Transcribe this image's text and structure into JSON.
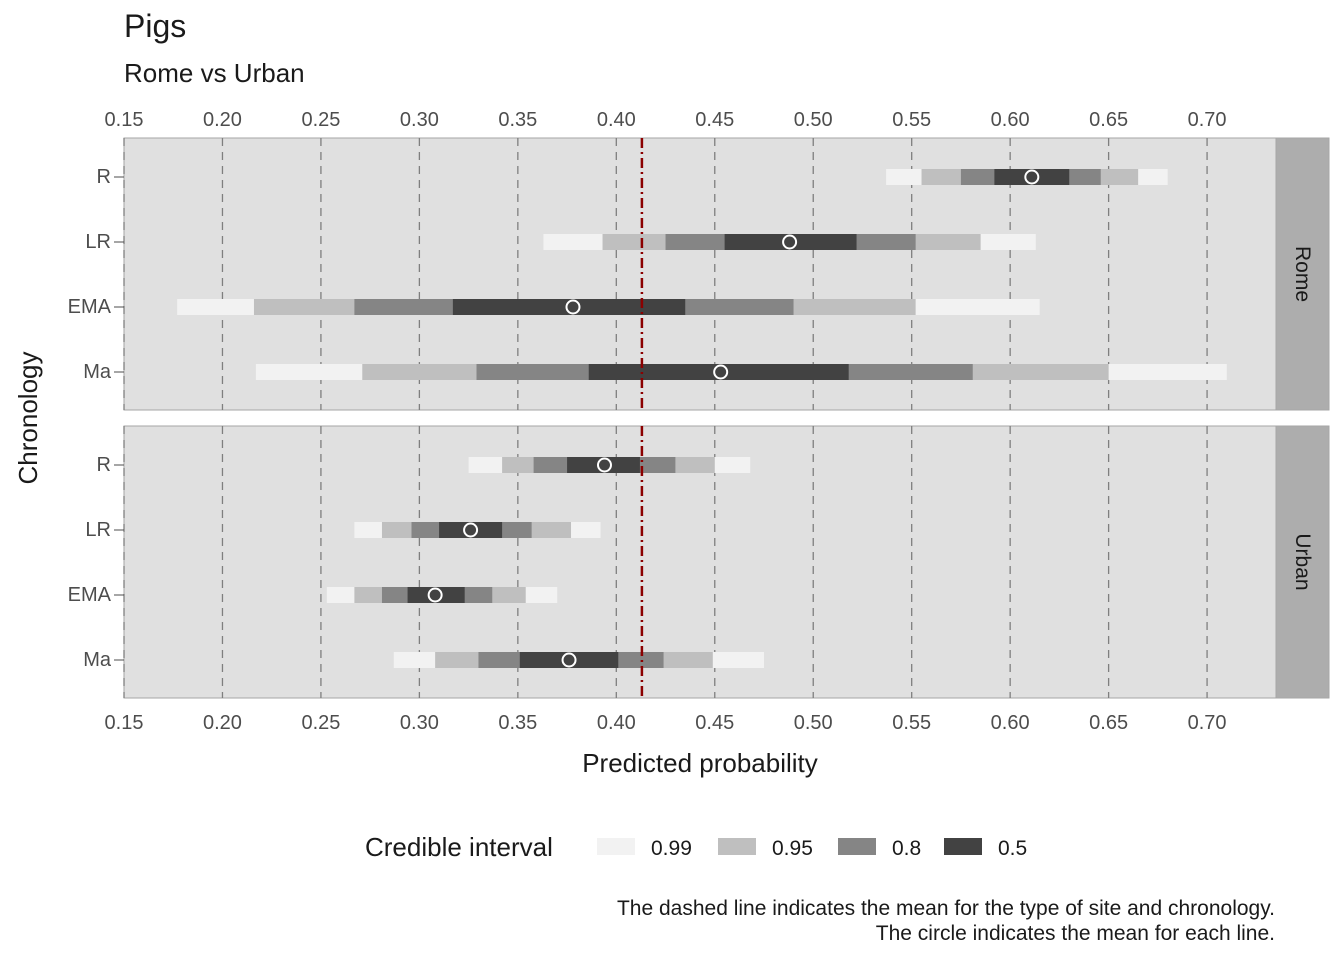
{
  "chart_data": {
    "type": "interval",
    "title": "Pigs",
    "subtitle": "Rome vs Urban",
    "xlabel": "Predicted probability",
    "ylabel": "Chronology",
    "xlim": [
      0.15,
      0.735
    ],
    "x_ticks": [
      "0.15",
      "0.20",
      "0.25",
      "0.30",
      "0.35",
      "0.40",
      "0.45",
      "0.50",
      "0.55",
      "0.60",
      "0.65",
      "0.70"
    ],
    "x_tick_values": [
      0.15,
      0.2,
      0.25,
      0.3,
      0.35,
      0.4,
      0.45,
      0.5,
      0.55,
      0.6,
      0.65,
      0.7
    ],
    "categories": [
      "R",
      "LR",
      "EMA",
      "Ma"
    ],
    "reference_line": 0.413,
    "grid": "vertical dashed",
    "legend": {
      "title": "Credible interval",
      "position": "bottom",
      "items": [
        {
          "label": "0.99",
          "color": "#f2f2f2"
        },
        {
          "label": "0.95",
          "color": "#bfbfbf"
        },
        {
          "label": "0.8",
          "color": "#858585"
        },
        {
          "label": "0.5",
          "color": "#424242"
        }
      ]
    },
    "colors": {
      "panel_bg": "#e0e0e0",
      "strip_bg": "#adadad",
      "grid": "#7f7f7f",
      "reference": "#8b0000",
      "ci99": "#f2f2f2",
      "ci95": "#bfbfbf",
      "ci80": "#858585",
      "ci50": "#424242"
    },
    "facets": [
      {
        "name": "Rome",
        "rows": [
          {
            "label": "R",
            "mean": 0.611,
            "ci99": [
              0.537,
              0.68
            ],
            "ci95": [
              0.555,
              0.665
            ],
            "ci80": [
              0.575,
              0.646
            ],
            "ci50": [
              0.592,
              0.63
            ]
          },
          {
            "label": "LR",
            "mean": 0.488,
            "ci99": [
              0.363,
              0.613
            ],
            "ci95": [
              0.393,
              0.585
            ],
            "ci80": [
              0.425,
              0.552
            ],
            "ci50": [
              0.455,
              0.522
            ]
          },
          {
            "label": "EMA",
            "mean": 0.378,
            "ci99": [
              0.177,
              0.615
            ],
            "ci95": [
              0.216,
              0.552
            ],
            "ci80": [
              0.267,
              0.49
            ],
            "ci50": [
              0.317,
              0.435
            ]
          },
          {
            "label": "Ma",
            "mean": 0.453,
            "ci99": [
              0.217,
              0.71
            ],
            "ci95": [
              0.271,
              0.65
            ],
            "ci80": [
              0.329,
              0.581
            ],
            "ci50": [
              0.386,
              0.518
            ]
          }
        ]
      },
      {
        "name": "Urban",
        "rows": [
          {
            "label": "R",
            "mean": 0.394,
            "ci99": [
              0.325,
              0.468
            ],
            "ci95": [
              0.342,
              0.45
            ],
            "ci80": [
              0.358,
              0.43
            ],
            "ci50": [
              0.375,
              0.412
            ]
          },
          {
            "label": "LR",
            "mean": 0.326,
            "ci99": [
              0.267,
              0.392
            ],
            "ci95": [
              0.281,
              0.377
            ],
            "ci80": [
              0.296,
              0.357
            ],
            "ci50": [
              0.31,
              0.342
            ]
          },
          {
            "label": "EMA",
            "mean": 0.308,
            "ci99": [
              0.253,
              0.37
            ],
            "ci95": [
              0.267,
              0.354
            ],
            "ci80": [
              0.281,
              0.337
            ],
            "ci50": [
              0.294,
              0.323
            ]
          },
          {
            "label": "Ma",
            "mean": 0.376,
            "ci99": [
              0.287,
              0.475
            ],
            "ci95": [
              0.308,
              0.449
            ],
            "ci80": [
              0.33,
              0.424
            ],
            "ci50": [
              0.351,
              0.401
            ]
          }
        ]
      }
    ]
  },
  "caption": {
    "line1": "The dashed line indicates the mean for the type of site and chronology.",
    "line2": "The circle indicates the mean for each line."
  }
}
